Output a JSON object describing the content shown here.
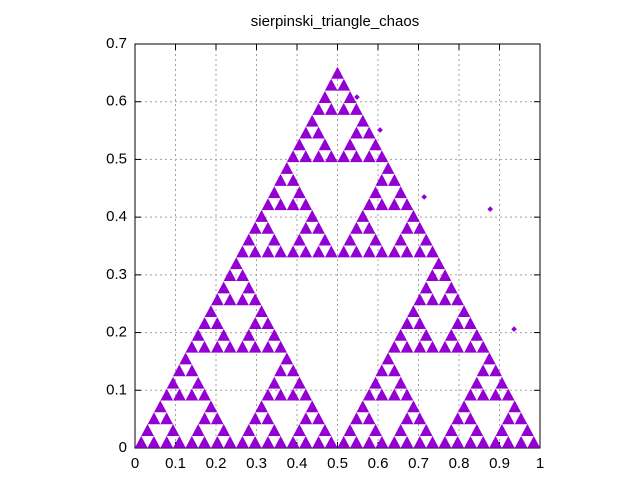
{
  "chart_data": {
    "type": "scatter",
    "title": "sierpinski_triangle_chaos",
    "xlim": [
      0,
      1
    ],
    "ylim": [
      0,
      0.7
    ],
    "xticks": [
      0,
      0.1,
      0.2,
      0.3,
      0.4,
      0.5,
      0.6,
      0.7,
      0.8,
      0.9,
      1
    ],
    "yticks": [
      0,
      0.1,
      0.2,
      0.3,
      0.4,
      0.5,
      0.6,
      0.7
    ],
    "grid": true,
    "series": [
      {
        "color": "#9400d3",
        "marker": "triangle",
        "x": [
          0.031,
          0.094,
          0.156,
          0.219,
          0.281,
          0.344,
          0.406,
          0.469,
          0.531,
          0.594,
          0.656,
          0.719,
          0.781,
          0.844,
          0.906,
          0.969,
          0.0625,
          0.1875,
          0.3125,
          0.4375,
          0.5625,
          0.6875,
          0.8125,
          0.9375,
          0.094,
          0.156,
          0.344,
          0.406,
          0.594,
          0.656,
          0.844,
          0.906,
          0.125,
          0.375,
          0.625,
          0.875,
          0.156,
          0.219,
          0.281,
          0.344,
          0.656,
          0.719,
          0.781,
          0.844,
          0.1875,
          0.3125,
          0.6875,
          0.8125,
          0.219,
          0.281,
          0.719,
          0.781,
          0.25,
          0.75,
          0.281,
          0.344,
          0.406,
          0.469,
          0.531,
          0.594,
          0.656,
          0.719,
          0.3125,
          0.4375,
          0.5625,
          0.6875,
          0.344,
          0.406,
          0.594,
          0.656,
          0.375,
          0.625,
          0.406,
          0.469,
          0.531,
          0.594,
          0.4375,
          0.5625,
          0.469,
          0.531,
          0.5
        ],
        "y": [
          0.014,
          0.014,
          0.014,
          0.014,
          0.014,
          0.014,
          0.014,
          0.014,
          0.014,
          0.014,
          0.014,
          0.014,
          0.014,
          0.014,
          0.014,
          0.014,
          0.055,
          0.055,
          0.055,
          0.055,
          0.055,
          0.055,
          0.055,
          0.055,
          0.096,
          0.096,
          0.096,
          0.096,
          0.096,
          0.096,
          0.096,
          0.096,
          0.138,
          0.138,
          0.138,
          0.138,
          0.179,
          0.179,
          0.179,
          0.179,
          0.179,
          0.179,
          0.179,
          0.179,
          0.22,
          0.22,
          0.22,
          0.22,
          0.261,
          0.261,
          0.261,
          0.261,
          0.303,
          0.303,
          0.344,
          0.344,
          0.344,
          0.344,
          0.344,
          0.344,
          0.344,
          0.344,
          0.385,
          0.385,
          0.385,
          0.385,
          0.426,
          0.426,
          0.426,
          0.426,
          0.468,
          0.468,
          0.509,
          0.509,
          0.509,
          0.509,
          0.55,
          0.55,
          0.591,
          0.591,
          0.633
        ]
      },
      {
        "color": "#9400d3",
        "marker": "dot",
        "x": [
          0.548,
          0.605,
          0.714,
          0.877,
          0.936
        ],
        "y": [
          0.608,
          0.551,
          0.435,
          0.414,
          0.206
        ]
      }
    ]
  }
}
